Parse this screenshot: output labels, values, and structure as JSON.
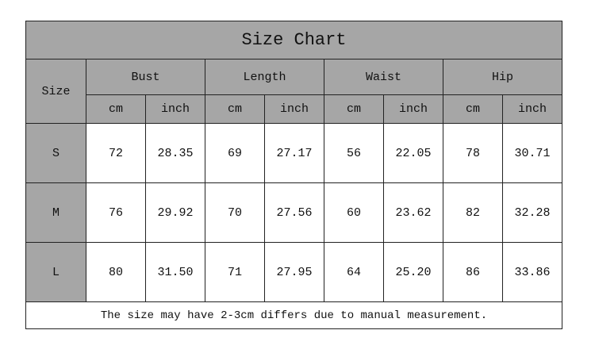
{
  "title": "Size Chart",
  "size_header": "Size",
  "groups": [
    "Bust",
    "Length",
    "Waist",
    "Hip"
  ],
  "units": [
    "cm",
    "inch"
  ],
  "rows": [
    {
      "size": "S",
      "values": [
        "72",
        "28.35",
        "69",
        "27.17",
        "56",
        "22.05",
        "78",
        "30.71"
      ]
    },
    {
      "size": "M",
      "values": [
        "76",
        "29.92",
        "70",
        "27.56",
        "60",
        "23.62",
        "82",
        "32.28"
      ]
    },
    {
      "size": "L",
      "values": [
        "80",
        "31.50",
        "71",
        "27.95",
        "64",
        "25.20",
        "86",
        "33.86"
      ]
    }
  ],
  "note": "The size may have 2-3cm differs due to manual measurement.",
  "colors": {
    "header_bg": "#a6a6a6",
    "border": "#222222"
  }
}
